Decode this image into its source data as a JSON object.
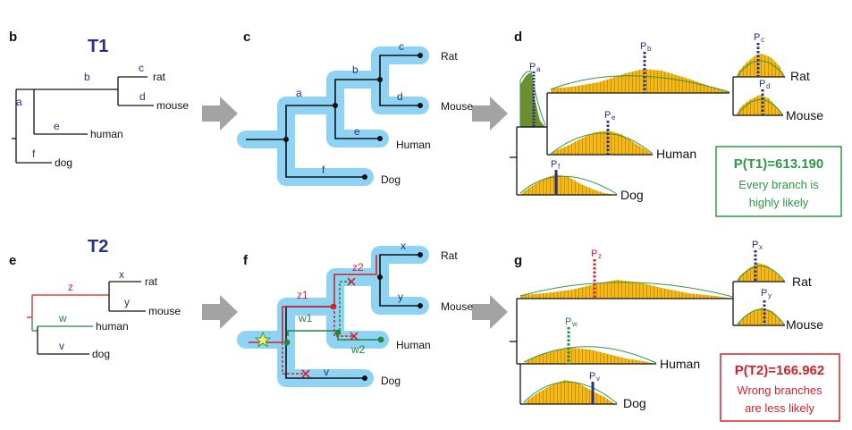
{
  "panels": {
    "b": "b",
    "c": "c",
    "d": "d",
    "e": "e",
    "f": "f",
    "g": "g"
  },
  "titles": {
    "t1": "T1",
    "t2": "T2"
  },
  "tree_t1": {
    "branches": {
      "a": "a",
      "b": "b",
      "c": "c",
      "d": "d",
      "e": "e",
      "f": "f"
    },
    "taxa": {
      "rat": "rat",
      "mouse": "mouse",
      "human": "human",
      "dog": "dog"
    }
  },
  "tree_t2": {
    "branches": {
      "z": "z",
      "x": "x",
      "y": "y",
      "w": "w",
      "v": "v"
    },
    "taxa": {
      "rat": "rat",
      "mouse": "mouse",
      "human": "human",
      "dog": "dog"
    }
  },
  "tube_t1": {
    "branches": {
      "a": "a",
      "b": "b",
      "c": "c",
      "d": "d",
      "e": "e",
      "f": "f"
    },
    "taxa": {
      "rat": "Rat",
      "mouse": "Mouse",
      "human": "Human",
      "dog": "Dog"
    }
  },
  "tube_t2": {
    "branches": {
      "x": "x",
      "y": "y",
      "v": "v",
      "z1": "z1",
      "z2": "z2",
      "w1": "w1",
      "w2": "w2"
    },
    "taxa": {
      "rat": "Rat",
      "mouse": "Mouse",
      "human": "Human",
      "dog": "Dog"
    }
  },
  "hist_t1": {
    "p_labels": {
      "a": "a",
      "b": "b",
      "c": "c",
      "d": "d",
      "e": "e",
      "f": "f"
    },
    "p_letter": "P",
    "taxa": {
      "rat": "Rat",
      "mouse": "Mouse",
      "human": "Human",
      "dog": "Dog"
    }
  },
  "hist_t2": {
    "p_labels": {
      "z": "z",
      "x": "x",
      "y": "y",
      "w": "w",
      "v": "v"
    },
    "p_letter": "P",
    "taxa": {
      "rat": "Rat",
      "mouse": "Mouse",
      "human": "Human",
      "dog": "Dog"
    }
  },
  "box_t1": {
    "title": "P(T1)=613.190",
    "line1": "Every branch is",
    "line2": "highly likely",
    "color": "#2e9a45"
  },
  "box_t2": {
    "title": "P(T2)=166.962",
    "line1": "Wrong branches",
    "line2": "are less likely",
    "color": "#d2232a"
  },
  "colors": {
    "tube": "#8fd3f4",
    "tree_line": "#111111",
    "label_blue": "#2b2f86",
    "red": "#d2232a",
    "green": "#1e8a3c",
    "hist_fill": "#f4b818",
    "hist_curve": "#2e9a45",
    "arrow": "#a3a3a3"
  }
}
